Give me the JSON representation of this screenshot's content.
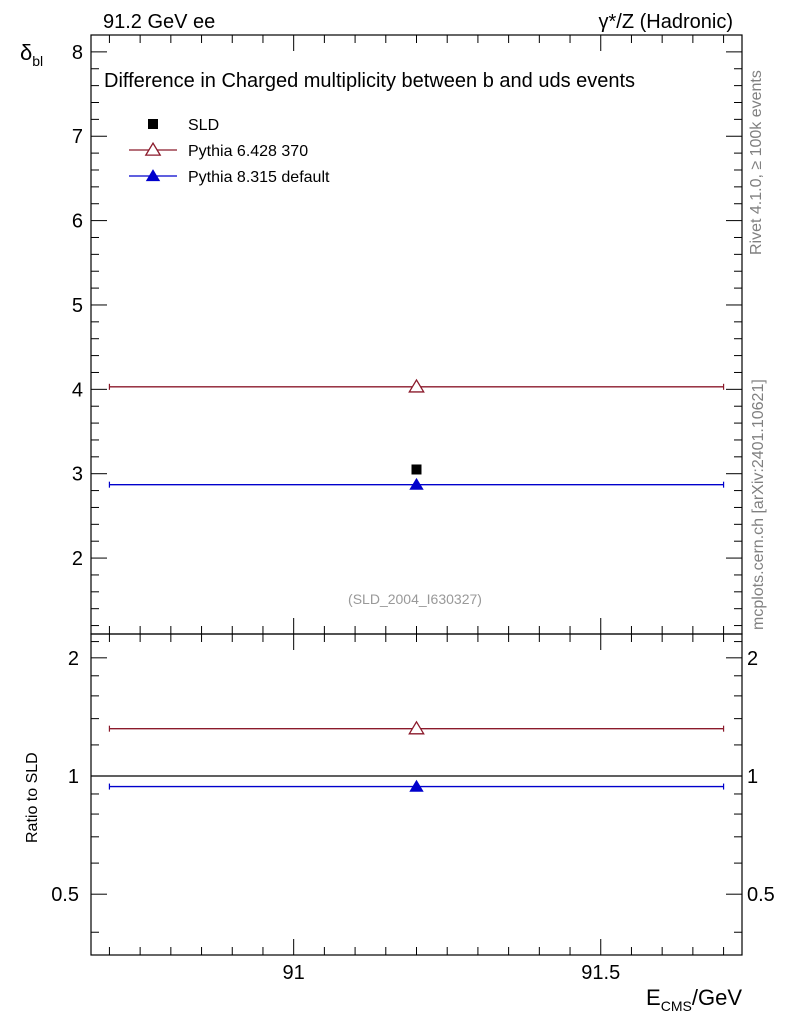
{
  "header": {
    "left": "91.2 GeV ee",
    "right": "γ*/Z (Hadronic)"
  },
  "side_text": {
    "rivet": "Rivet 4.1.0, ≥ 100k events",
    "mcplots": "mcplots.cern.ch [arXiv:2401.10621]"
  },
  "chart_data": {
    "type": "scatter",
    "title": "Difference in Charged multiplicity between b and uds events",
    "watermark": "(SLD_2004_I630327)",
    "xlabel_main": "E",
    "xlabel_sub": "CMS",
    "xlabel_unit": "/GeV",
    "ylabel_main": "δ",
    "ylabel_sub": "bl",
    "ratio_ylabel": "Ratio to SLD",
    "xlim": [
      90.67,
      91.73
    ],
    "ylim": [
      1.1,
      8.2
    ],
    "ratio_ylim": [
      0.35,
      2.3
    ],
    "x_ticks": [
      91,
      91.5
    ],
    "x_tick_labels": [
      "91",
      "91.5"
    ],
    "y_ticks": [
      2,
      3,
      4,
      5,
      6,
      7,
      8
    ],
    "y_tick_labels": [
      "2",
      "3",
      "4",
      "5",
      "6",
      "7",
      "8"
    ],
    "ratio_ticks": [
      0.5,
      1,
      2
    ],
    "ratio_tick_labels": [
      "0.5",
      "1",
      "2"
    ],
    "series": [
      {
        "name": "SLD",
        "marker": "square",
        "color": "#000000",
        "x": [
          91.2
        ],
        "y": [
          3.05
        ],
        "xerr": [
          0
        ],
        "ratio": [
          1.0
        ]
      },
      {
        "name": "Pythia 6.428 370",
        "marker": "triangle-open",
        "color": "#8b1a2b",
        "x": [
          91.2
        ],
        "y": [
          4.03
        ],
        "xerr": [
          0.5
        ],
        "ratio": [
          1.32
        ]
      },
      {
        "name": "Pythia 8.315 default",
        "marker": "triangle-filled",
        "color": "#0000cc",
        "x": [
          91.2
        ],
        "y": [
          2.87
        ],
        "xerr": [
          0.5
        ],
        "ratio": [
          0.94
        ]
      }
    ]
  }
}
